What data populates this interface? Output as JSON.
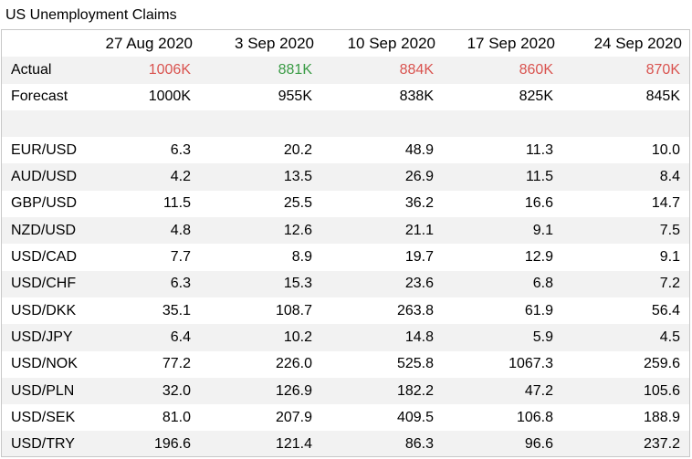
{
  "title": "US Unemployment Claims",
  "columns": [
    "27 Aug 2020",
    "3 Sep 2020",
    "10 Sep 2020",
    "17 Sep 2020",
    "24 Sep 2020"
  ],
  "colors": {
    "red": "#d9534f",
    "green": "#3a9b45",
    "zebra": "#f2f2f2"
  },
  "actual": {
    "label": "Actual",
    "values": [
      "1006K",
      "881K",
      "884K",
      "860K",
      "870K"
    ],
    "tones": [
      "up",
      "down",
      "up",
      "up",
      "up"
    ]
  },
  "forecast": {
    "label": "Forecast",
    "values": [
      "1000K",
      "955K",
      "838K",
      "825K",
      "845K"
    ]
  },
  "pairs": [
    {
      "label": "EUR/USD",
      "values": [
        "6.3",
        "20.2",
        "48.9",
        "11.3",
        "10.0"
      ]
    },
    {
      "label": "AUD/USD",
      "values": [
        "4.2",
        "13.5",
        "26.9",
        "11.5",
        "8.4"
      ]
    },
    {
      "label": "GBP/USD",
      "values": [
        "11.5",
        "25.5",
        "36.2",
        "16.6",
        "14.7"
      ]
    },
    {
      "label": "NZD/USD",
      "values": [
        "4.8",
        "12.6",
        "21.1",
        "9.1",
        "7.5"
      ]
    },
    {
      "label": "USD/CAD",
      "values": [
        "7.7",
        "8.9",
        "19.7",
        "12.9",
        "9.1"
      ]
    },
    {
      "label": "USD/CHF",
      "values": [
        "6.3",
        "15.3",
        "23.6",
        "6.8",
        "7.2"
      ]
    },
    {
      "label": "USD/DKK",
      "values": [
        "35.1",
        "108.7",
        "263.8",
        "61.9",
        "56.4"
      ]
    },
    {
      "label": "USD/JPY",
      "values": [
        "6.4",
        "10.2",
        "14.8",
        "5.9",
        "4.5"
      ]
    },
    {
      "label": "USD/NOK",
      "values": [
        "77.2",
        "226.0",
        "525.8",
        "1067.3",
        "259.6"
      ]
    },
    {
      "label": "USD/PLN",
      "values": [
        "32.0",
        "126.9",
        "182.2",
        "47.2",
        "105.6"
      ]
    },
    {
      "label": "USD/SEK",
      "values": [
        "81.0",
        "207.9",
        "409.5",
        "106.8",
        "188.9"
      ]
    },
    {
      "label": "USD/TRY",
      "values": [
        "196.6",
        "121.4",
        "86.3",
        "96.6",
        "237.2"
      ]
    }
  ]
}
